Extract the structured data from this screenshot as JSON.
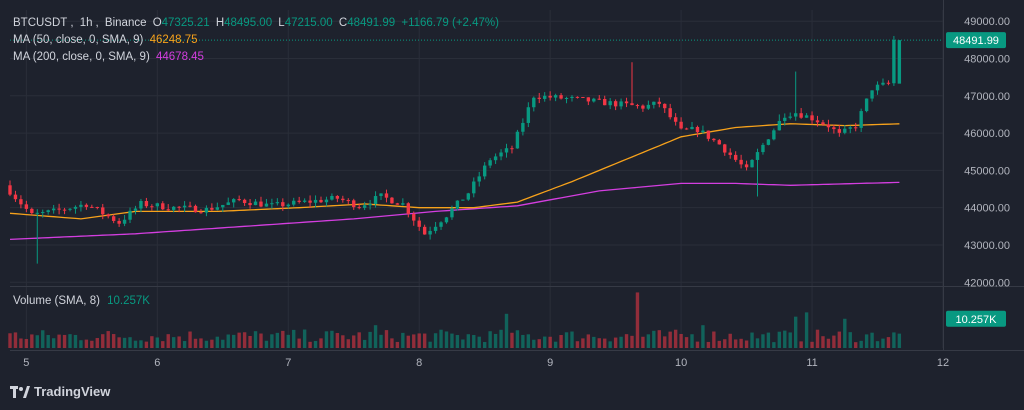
{
  "header": {
    "symbol": "BTCUSDT",
    "interval": "1h",
    "exchange": "Binance",
    "open_label": "O",
    "open": "47325.21",
    "high_label": "H",
    "high": "48495.00",
    "low_label": "L",
    "low": "47215.00",
    "close_label": "C",
    "close": "48491.99",
    "change": "+1166.79 (+2.47%)"
  },
  "indicators": {
    "ma50_label": "MA (50, close, 0, SMA, 9)",
    "ma50_value": "46248.75",
    "ma200_label": "MA (200, close, 0, SMA, 9)",
    "ma200_value": "44678.45"
  },
  "volume_legend": {
    "label": "Volume (SMA, 8)",
    "value": "10.257K"
  },
  "price_label": "48491.99",
  "volume_label": "10.257K",
  "brand": {
    "name": "TradingView"
  },
  "colors": {
    "up": "#089981",
    "down": "#f23645",
    "ma50": "#f7a21b",
    "ma200": "#d43ee0",
    "background": "#1e222d",
    "grid": "#2a2e39"
  },
  "chart_data": {
    "type": "candlestick",
    "y_ticks": [
      "49000.00",
      "48000.00",
      "47000.00",
      "46000.00",
      "45000.00",
      "44000.00",
      "43000.00",
      "42000.00"
    ],
    "ylim": [
      41900,
      49300
    ],
    "x_ticks": [
      "5",
      "6",
      "7",
      "8",
      "9",
      "10",
      "11",
      "12"
    ],
    "x_tick_hours": [
      0,
      24,
      48,
      72,
      96,
      120,
      144,
      168
    ],
    "xlim_hours": [
      -3,
      168
    ],
    "candles_start_hour": -3,
    "price_anchors": [
      [
        -3,
        44600
      ],
      [
        2,
        43800
      ],
      [
        6,
        43900
      ],
      [
        12,
        44100
      ],
      [
        18,
        43600
      ],
      [
        22,
        44100
      ],
      [
        28,
        44000
      ],
      [
        34,
        43950
      ],
      [
        40,
        44200
      ],
      [
        46,
        44050
      ],
      [
        52,
        44150
      ],
      [
        58,
        44250
      ],
      [
        62,
        44050
      ],
      [
        66,
        44300
      ],
      [
        70,
        44100
      ],
      [
        74,
        43300
      ],
      [
        78,
        43800
      ],
      [
        82,
        44400
      ],
      [
        86,
        45300
      ],
      [
        90,
        45600
      ],
      [
        94,
        47000
      ],
      [
        98,
        46950
      ],
      [
        102,
        46900
      ],
      [
        108,
        46800
      ],
      [
        114,
        46700
      ],
      [
        117,
        46800
      ],
      [
        121,
        46050
      ],
      [
        124,
        46100
      ],
      [
        128,
        45700
      ],
      [
        133,
        45000
      ],
      [
        137,
        45900
      ],
      [
        140,
        46500
      ],
      [
        142,
        46550
      ],
      [
        145,
        46400
      ],
      [
        148,
        46200
      ],
      [
        150,
        45950
      ],
      [
        153,
        46200
      ],
      [
        156,
        47200
      ],
      [
        159,
        47325.21
      ],
      [
        160,
        48491.99
      ]
    ],
    "wick_spikes": [
      [
        2,
        42500
      ],
      [
        111,
        47900
      ],
      [
        138,
        46500
      ],
      [
        141,
        47650
      ],
      [
        134,
        44300
      ]
    ],
    "ma50_anchors": [
      [
        -3,
        43850
      ],
      [
        10,
        43700
      ],
      [
        20,
        43900
      ],
      [
        35,
        43900
      ],
      [
        50,
        44000
      ],
      [
        62,
        44100
      ],
      [
        72,
        44000
      ],
      [
        82,
        44000
      ],
      [
        90,
        44150
      ],
      [
        100,
        44700
      ],
      [
        110,
        45300
      ],
      [
        120,
        45900
      ],
      [
        130,
        46150
      ],
      [
        140,
        46250
      ],
      [
        150,
        46200
      ],
      [
        160,
        46248.75
      ]
    ],
    "ma200_anchors": [
      [
        -3,
        43150
      ],
      [
        20,
        43300
      ],
      [
        40,
        43500
      ],
      [
        60,
        43700
      ],
      [
        75,
        43900
      ],
      [
        90,
        44050
      ],
      [
        105,
        44450
      ],
      [
        120,
        44650
      ],
      [
        130,
        44650
      ],
      [
        140,
        44600
      ],
      [
        160,
        44678.45
      ]
    ],
    "volume_ylim": [
      0,
      20
    ],
    "volume_spikes": [
      [
        112,
        19.5
      ],
      [
        143,
        12.5
      ],
      [
        141,
        11
      ],
      [
        88,
        12
      ],
      [
        64,
        8
      ],
      [
        124,
        8
      ],
      [
        150,
        10.257
      ]
    ]
  }
}
